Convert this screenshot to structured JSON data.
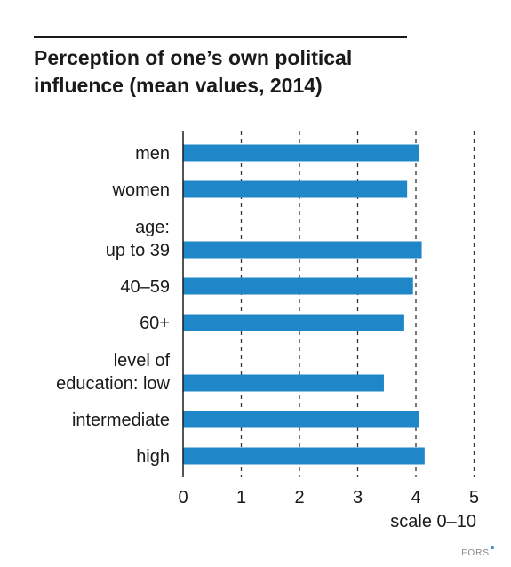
{
  "chart_data": {
    "type": "bar",
    "orientation": "horizontal",
    "title": "Perception of one’s own political\ninfluence (mean values, 2014)",
    "xlabel": "scale 0–10",
    "ylabel": "",
    "xlim": [
      0,
      5
    ],
    "x_ticks": [
      "0",
      "1",
      "2",
      "3",
      "4",
      "5"
    ],
    "grid": "vertical dashed lines at 1, 2, 3, 4, 5",
    "bar_color": "#1f86c8",
    "categories": [
      [
        "men"
      ],
      [
        "women"
      ],
      [
        "age:",
        "up to 39"
      ],
      [
        "40–59"
      ],
      [
        "60+"
      ],
      [
        "level of",
        "education: low"
      ],
      [
        "intermediate"
      ],
      [
        "high"
      ]
    ],
    "values": [
      4.05,
      3.85,
      4.1,
      3.95,
      3.8,
      3.45,
      4.05,
      4.15
    ]
  },
  "credit": {
    "label": "FORS"
  }
}
